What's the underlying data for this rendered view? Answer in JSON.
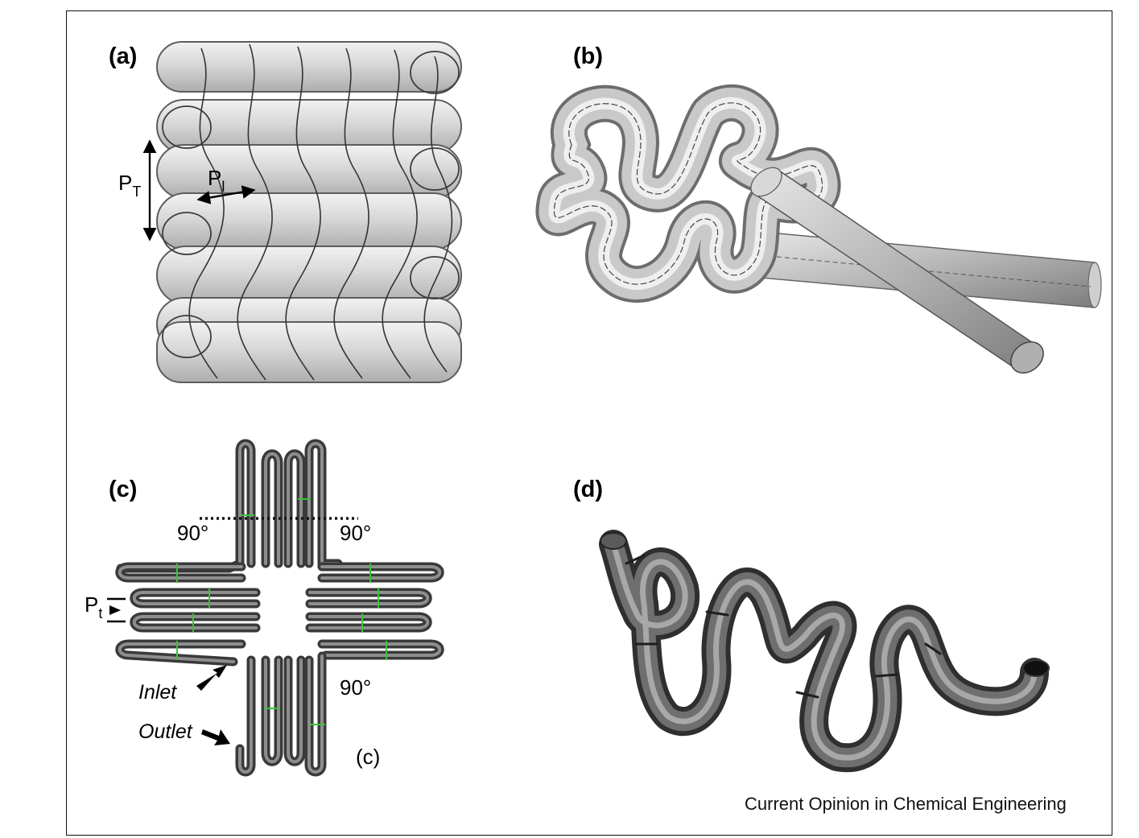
{
  "panels": {
    "a": {
      "label": "(a)",
      "pitch_transverse": "P",
      "pitch_transverse_sub": "T",
      "pitch_longitudinal": "P",
      "pitch_longitudinal_sub": "l"
    },
    "b": {
      "label": "(b)"
    },
    "c": {
      "label": "(c)",
      "angle_top_left": "90°",
      "angle_top_right": "90°",
      "angle_bottom": "90°",
      "pitch": "P",
      "pitch_sub": "t",
      "inlet": "Inlet",
      "outlet": "Outlet",
      "caption": "(c)"
    },
    "d": {
      "label": "(d)"
    }
  },
  "credit": "Current Opinion in Chemical Engineering",
  "colors": {
    "tube_light": "#d9d9d9",
    "tube_mid": "#9c9c9c",
    "tube_dark": "#4a4a4a",
    "accent_green": "#38c438"
  }
}
